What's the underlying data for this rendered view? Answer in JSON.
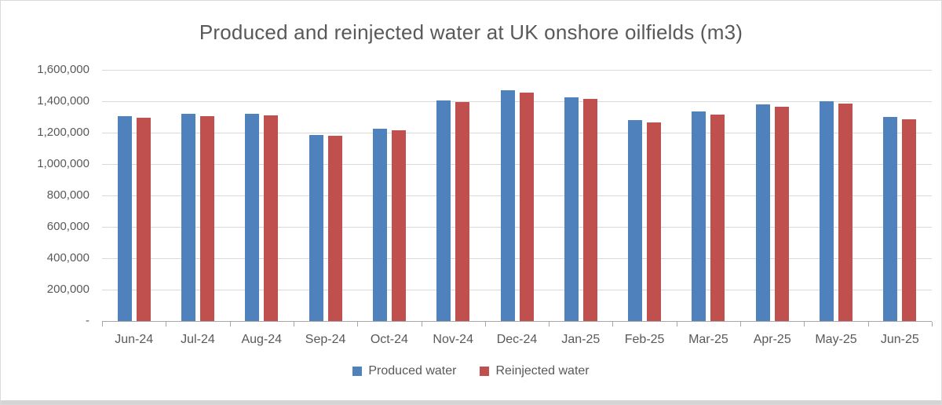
{
  "chart_data": {
    "type": "bar",
    "title": "Produced and reinjected water at UK onshore oilfields (m3)",
    "categories": [
      "Jun-24",
      "Jul-24",
      "Aug-24",
      "Sep-24",
      "Oct-24",
      "Nov-24",
      "Dec-24",
      "Jan-25",
      "Feb-25",
      "Mar-25",
      "Apr-25",
      "May-25",
      "Jun-25"
    ],
    "series": [
      {
        "name": "Produced water",
        "color": "#4F81BD",
        "values": [
          1305000,
          1320000,
          1320000,
          1185000,
          1225000,
          1405000,
          1470000,
          1425000,
          1280000,
          1335000,
          1380000,
          1400000,
          1300000
        ]
      },
      {
        "name": "Reinjected water",
        "color": "#C0504D",
        "values": [
          1295000,
          1305000,
          1310000,
          1180000,
          1215000,
          1395000,
          1455000,
          1415000,
          1265000,
          1315000,
          1365000,
          1385000,
          1285000
        ]
      }
    ],
    "ylim": [
      0,
      1600000
    ],
    "y_tick_step": 200000,
    "y_tick_labels": [
      "1,600,000",
      "1,400,000",
      "1,200,000",
      "1,000,000",
      "800,000",
      "600,000",
      "400,000",
      "200,000",
      "-"
    ],
    "grid": true,
    "legend_position": "bottom",
    "colors": {
      "grid": "#D9D9D9",
      "axis": "#A6A6A6",
      "text": "#595959",
      "title": "#595959",
      "frame_border": "#D9D9D9",
      "bottom_strip": "#D4D4D4"
    }
  }
}
